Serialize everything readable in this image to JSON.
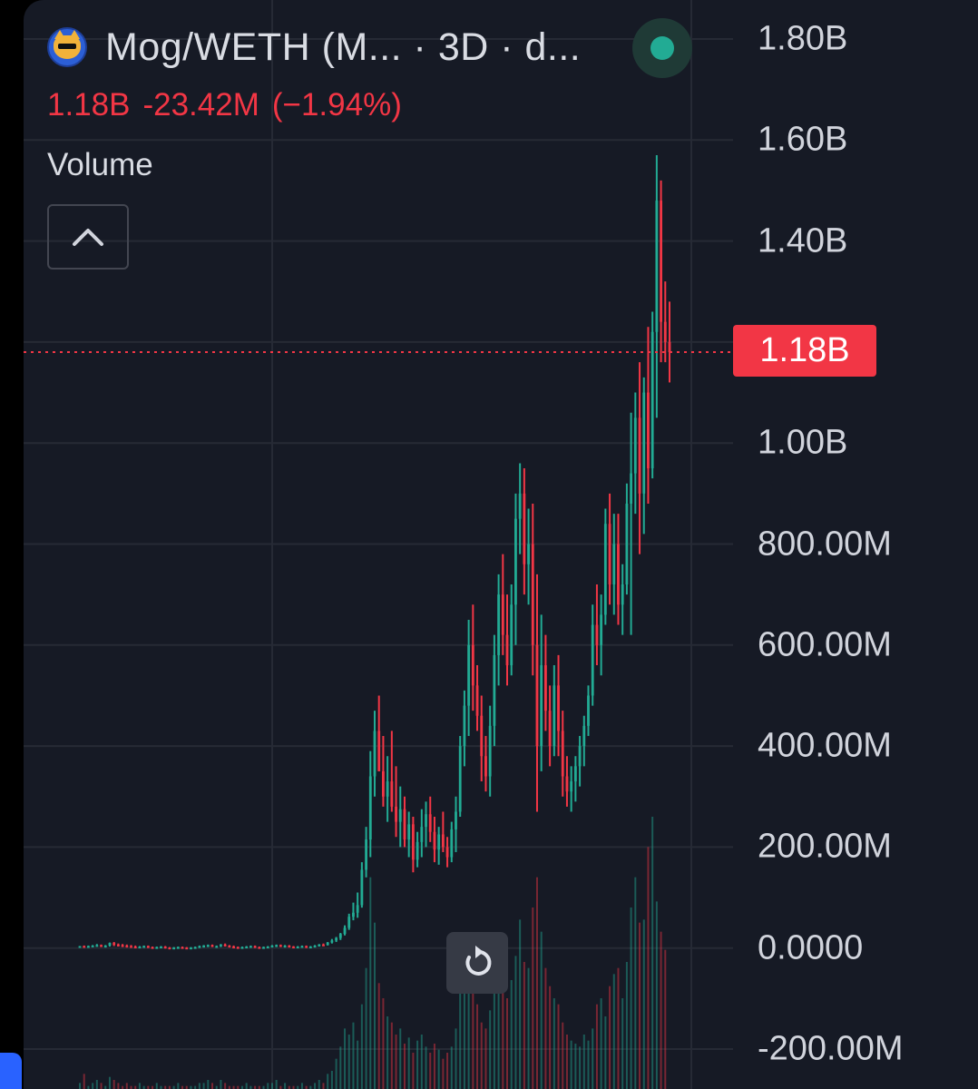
{
  "header": {
    "title": "Mog/WETH (M... · 3D · d...",
    "last_price": "1.18B",
    "change": "-23.42M",
    "change_pct": "(−1.94%)"
  },
  "volume_label": "Volume",
  "price_tag": "1.18B",
  "colors": {
    "up": "#22ab94",
    "down": "#f23645",
    "background": "#161a25",
    "grid": "#262a35",
    "text": "#d1d4dc"
  },
  "icons": {
    "logo": "mog-cat-logo-icon",
    "live": "live-status-dot-icon",
    "collapse": "chevron-up-icon",
    "reset": "reset-chart-icon"
  },
  "chart_data": {
    "type": "candlestick",
    "symbol": "Mog/WETH",
    "interval": "3D",
    "y_axis": {
      "ticks": [
        1800000000,
        1600000000,
        1400000000,
        1200000000,
        1000000000,
        800000000,
        600000000,
        400000000,
        200000000,
        0,
        -200000000
      ],
      "tick_labels": [
        "1.80B",
        "1.60B",
        "1.40B",
        "",
        "1.00B",
        "800.00M",
        "600.00M",
        "400.00M",
        "200.00M",
        "0.0000",
        "-200.00M"
      ],
      "range": [
        -200000000,
        1800000000
      ]
    },
    "current_price": 1180000000,
    "grid": true,
    "candles": [
      [
        4,
        4,
        2,
        4
      ],
      [
        4,
        5,
        1,
        3
      ],
      [
        3,
        5,
        1,
        4
      ],
      [
        4,
        6,
        2,
        5
      ],
      [
        5,
        8,
        3,
        6
      ],
      [
        6,
        7,
        2,
        4
      ],
      [
        4,
        6,
        1,
        5
      ],
      [
        5,
        11,
        3,
        10
      ],
      [
        10,
        12,
        4,
        7
      ],
      [
        7,
        9,
        3,
        6
      ],
      [
        6,
        8,
        2,
        5
      ],
      [
        5,
        7,
        1,
        4
      ],
      [
        4,
        6,
        1,
        3
      ],
      [
        3,
        5,
        0,
        2
      ],
      [
        2,
        4,
        0,
        3
      ],
      [
        3,
        5,
        1,
        4
      ],
      [
        4,
        5,
        0,
        2
      ],
      [
        2,
        3,
        -1,
        1
      ],
      [
        1,
        3,
        -1,
        2
      ],
      [
        2,
        4,
        0,
        3
      ],
      [
        3,
        4,
        -1,
        1
      ],
      [
        1,
        2,
        -2,
        0
      ],
      [
        0,
        2,
        -2,
        1
      ],
      [
        1,
        3,
        -1,
        2
      ],
      [
        2,
        3,
        -1,
        1
      ],
      [
        1,
        2,
        -2,
        0
      ],
      [
        0,
        2,
        -2,
        1
      ],
      [
        1,
        3,
        -1,
        2
      ],
      [
        2,
        5,
        0,
        4
      ],
      [
        4,
        6,
        1,
        5
      ],
      [
        5,
        7,
        2,
        6
      ],
      [
        6,
        7,
        2,
        3
      ],
      [
        3,
        5,
        1,
        4
      ],
      [
        4,
        8,
        2,
        7
      ],
      [
        7,
        9,
        3,
        5
      ],
      [
        5,
        6,
        1,
        3
      ],
      [
        3,
        5,
        0,
        2
      ],
      [
        2,
        3,
        -1,
        1
      ],
      [
        1,
        3,
        -1,
        2
      ],
      [
        2,
        4,
        0,
        3
      ],
      [
        3,
        5,
        1,
        4
      ],
      [
        4,
        5,
        0,
        2
      ],
      [
        2,
        3,
        -1,
        1
      ],
      [
        1,
        3,
        -1,
        2
      ],
      [
        2,
        4,
        0,
        3
      ],
      [
        3,
        6,
        1,
        5
      ],
      [
        5,
        7,
        2,
        6
      ],
      [
        6,
        7,
        2,
        4
      ],
      [
        4,
        6,
        1,
        5
      ],
      [
        5,
        6,
        1,
        3
      ],
      [
        3,
        4,
        0,
        2
      ],
      [
        2,
        4,
        0,
        3
      ],
      [
        3,
        5,
        1,
        4
      ],
      [
        4,
        5,
        0,
        2
      ],
      [
        2,
        4,
        0,
        3
      ],
      [
        3,
        6,
        1,
        5
      ],
      [
        5,
        8,
        3,
        7
      ],
      [
        7,
        9,
        4,
        6
      ],
      [
        6,
        12,
        5,
        11
      ],
      [
        11,
        18,
        9,
        15
      ],
      [
        15,
        22,
        12,
        20
      ],
      [
        20,
        30,
        16,
        28
      ],
      [
        28,
        45,
        25,
        40
      ],
      [
        40,
        68,
        36,
        62
      ],
      [
        62,
        90,
        55,
        70
      ],
      [
        70,
        110,
        60,
        85
      ],
      [
        85,
        170,
        80,
        155
      ],
      [
        155,
        240,
        140,
        215
      ],
      [
        215,
        390,
        180,
        340
      ],
      [
        340,
        470,
        300,
        430
      ],
      [
        430,
        500,
        380,
        350
      ],
      [
        350,
        420,
        280,
        300
      ],
      [
        300,
        380,
        250,
        330
      ],
      [
        330,
        430,
        270,
        280
      ],
      [
        280,
        360,
        220,
        250
      ],
      [
        250,
        320,
        200,
        275
      ],
      [
        275,
        300,
        200,
        215
      ],
      [
        215,
        270,
        180,
        245
      ],
      [
        245,
        260,
        150,
        175
      ],
      [
        175,
        230,
        160,
        210
      ],
      [
        210,
        275,
        180,
        240
      ],
      [
        240,
        290,
        200,
        265
      ],
      [
        265,
        300,
        210,
        230
      ],
      [
        230,
        260,
        170,
        195
      ],
      [
        195,
        240,
        165,
        225
      ],
      [
        225,
        270,
        190,
        200
      ],
      [
        200,
        220,
        160,
        180
      ],
      [
        180,
        250,
        170,
        235
      ],
      [
        235,
        300,
        190,
        270
      ],
      [
        270,
        420,
        260,
        400
      ],
      [
        400,
        510,
        360,
        480
      ],
      [
        480,
        650,
        420,
        600
      ],
      [
        600,
        680,
        470,
        520
      ],
      [
        520,
        560,
        430,
        460
      ],
      [
        460,
        500,
        330,
        380
      ],
      [
        380,
        420,
        310,
        340
      ],
      [
        340,
        480,
        300,
        440
      ],
      [
        440,
        620,
        400,
        580
      ],
      [
        580,
        740,
        520,
        700
      ],
      [
        700,
        780,
        580,
        620
      ],
      [
        620,
        700,
        520,
        560
      ],
      [
        560,
        720,
        540,
        680
      ],
      [
        680,
        900,
        600,
        850
      ],
      [
        850,
        960,
        780,
        900
      ],
      [
        900,
        950,
        700,
        760
      ],
      [
        760,
        870,
        680,
        800
      ],
      [
        800,
        880,
        540,
        600
      ],
      [
        600,
        740,
        270,
        400
      ],
      [
        400,
        660,
        350,
        560
      ],
      [
        560,
        620,
        430,
        470
      ],
      [
        470,
        520,
        360,
        400
      ],
      [
        400,
        560,
        380,
        520
      ],
      [
        520,
        580,
        380,
        430
      ],
      [
        430,
        470,
        300,
        340
      ],
      [
        340,
        380,
        280,
        310
      ],
      [
        310,
        360,
        270,
        330
      ],
      [
        330,
        380,
        290,
        360
      ],
      [
        360,
        420,
        320,
        400
      ],
      [
        400,
        460,
        360,
        440
      ],
      [
        440,
        520,
        420,
        500
      ],
      [
        500,
        680,
        480,
        640
      ],
      [
        640,
        720,
        560,
        600
      ],
      [
        600,
        700,
        540,
        660
      ],
      [
        660,
        870,
        640,
        840
      ],
      [
        840,
        900,
        680,
        720
      ],
      [
        720,
        860,
        660,
        800
      ],
      [
        800,
        860,
        640,
        680
      ],
      [
        680,
        760,
        620,
        720
      ],
      [
        720,
        920,
        700,
        880
      ],
      [
        880,
        1060,
        620,
        940
      ],
      [
        940,
        1100,
        860,
        1050
      ],
      [
        1050,
        1160,
        780,
        900
      ],
      [
        900,
        1130,
        820,
        1100
      ],
      [
        1100,
        1230,
        880,
        950
      ],
      [
        950,
        1260,
        930,
        1220
      ],
      [
        1220,
        1570,
        1050,
        1480
      ],
      [
        1480,
        1520,
        1160,
        1240
      ],
      [
        1240,
        1320,
        1160,
        1200
      ],
      [
        1200,
        1280,
        1120,
        1180
      ]
    ],
    "volume": [
      2,
      5,
      1,
      2,
      3,
      2,
      1,
      4,
      3,
      2,
      1,
      2,
      1,
      1,
      2,
      1,
      1,
      1,
      2,
      1,
      1,
      1,
      1,
      2,
      1,
      1,
      1,
      1,
      2,
      2,
      3,
      2,
      1,
      3,
      2,
      1,
      1,
      1,
      1,
      2,
      1,
      1,
      1,
      1,
      2,
      2,
      3,
      1,
      2,
      1,
      1,
      1,
      2,
      1,
      1,
      2,
      3,
      2,
      5,
      6,
      10,
      14,
      20,
      18,
      22,
      16,
      28,
      40,
      70,
      55,
      35,
      30,
      24,
      22,
      18,
      20,
      15,
      17,
      12,
      16,
      18,
      14,
      12,
      15,
      13,
      10,
      12,
      14,
      20,
      32,
      40,
      50,
      36,
      28,
      22,
      20,
      26,
      34,
      50,
      38,
      30,
      36,
      44,
      56,
      42,
      40,
      60,
      70,
      52,
      40,
      34,
      30,
      28,
      22,
      18,
      16,
      15,
      14,
      18,
      16,
      20,
      28,
      30,
      24,
      34,
      38,
      40,
      30,
      42,
      60,
      70,
      55,
      56,
      80,
      90,
      62,
      52,
      46
    ],
    "volume_max": 90
  }
}
